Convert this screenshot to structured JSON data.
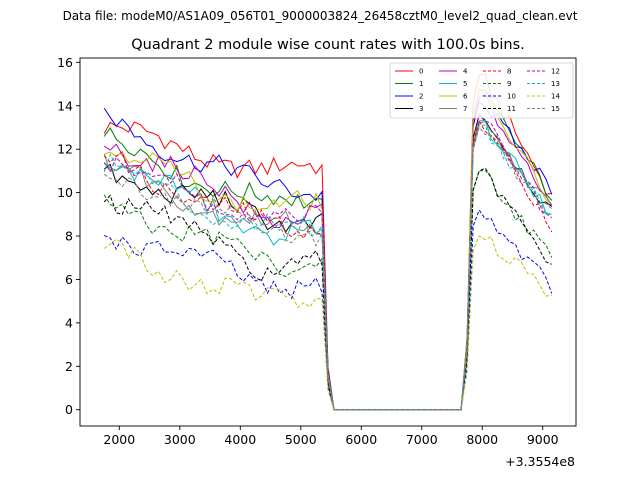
{
  "chart_data": {
    "type": "line",
    "suptitle": "Data file: modeM0/AS1A09_056T01_9000003824_26458cztM0_level2_quad_clean.evt",
    "title": "Quadrant 2 module wise count rates with 100.0s bins.",
    "xlabel": "",
    "ylabel": "",
    "x_offset_label": "+3.3554e8",
    "xlim": [
      1350,
      9550
    ],
    "ylim": [
      -0.75,
      16.2
    ],
    "xticks": [
      2000,
      3000,
      4000,
      5000,
      6000,
      7000,
      8000,
      9000
    ],
    "xtick_labels": [
      "2000",
      "3000",
      "4000",
      "5000",
      "6000",
      "7000",
      "8000",
      "9000"
    ],
    "yticks": [
      0,
      2,
      4,
      6,
      8,
      10,
      12,
      14,
      16
    ],
    "ytick_labels": [
      "0",
      "2",
      "4",
      "6",
      "8",
      "10",
      "12",
      "14",
      "16"
    ],
    "legend_position": "top-right",
    "x": {
      "start": 1750,
      "end": 9150,
      "step": 100,
      "gap_start": 5550,
      "gap_end": 7750
    },
    "series": [
      {
        "name": "0",
        "color": "#ff0000",
        "dash": "solid",
        "base1": 13.0,
        "base2": 11.0,
        "peak": 15.4,
        "end": 9.8
      },
      {
        "name": "1",
        "color": "#008000",
        "dash": "solid",
        "base1": 12.4,
        "base2": 9.5,
        "peak": 14.7,
        "end": 9.8
      },
      {
        "name": "2",
        "color": "#0000ff",
        "dash": "solid",
        "base1": 13.4,
        "base2": 10.2,
        "peak": 14.2,
        "end": 10.2
      },
      {
        "name": "3",
        "color": "#000000",
        "dash": "solid",
        "base1": 11.0,
        "base2": 8.8,
        "peak": 13.6,
        "end": 9.0
      },
      {
        "name": "4",
        "color": "#bf00bf",
        "dash": "solid",
        "base1": 12.5,
        "base2": 9.0,
        "peak": 14.4,
        "end": 9.6
      },
      {
        "name": "5",
        "color": "#00bfbf",
        "dash": "solid",
        "base1": 11.5,
        "base2": 8.2,
        "peak": 13.3,
        "end": 9.0
      },
      {
        "name": "6",
        "color": "#bfbf00",
        "dash": "solid",
        "base1": 12.0,
        "base2": 9.3,
        "peak": 14.8,
        "end": 9.4
      },
      {
        "name": "7",
        "color": "#808080",
        "dash": "solid",
        "base1": 11.2,
        "base2": 8.4,
        "peak": 13.2,
        "end": 9.2
      },
      {
        "name": "8",
        "color": "#ff0000",
        "dash": "dashed",
        "base1": 11.6,
        "base2": 8.4,
        "peak": 13.3,
        "end": 8.5
      },
      {
        "name": "9",
        "color": "#008000",
        "dash": "dashed",
        "base1": 9.6,
        "base2": 6.8,
        "peak": 11.0,
        "end": 7.0
      },
      {
        "name": "10",
        "color": "#0000ff",
        "dash": "dashed",
        "base1": 8.3,
        "base2": 5.8,
        "peak": 9.2,
        "end": 5.7
      },
      {
        "name": "11",
        "color": "#000000",
        "dash": "dashed",
        "base1": 10.0,
        "base2": 6.6,
        "peak": 11.0,
        "end": 6.6
      },
      {
        "name": "12",
        "color": "#bf00bf",
        "dash": "dashed",
        "base1": 11.4,
        "base2": 8.7,
        "peak": 13.5,
        "end": 8.6
      },
      {
        "name": "13",
        "color": "#00bfbf",
        "dash": "dashed",
        "base1": 11.2,
        "base2": 8.3,
        "peak": 13.1,
        "end": 8.8
      },
      {
        "name": "14",
        "color": "#bfbf00",
        "dash": "dashed",
        "base1": 7.4,
        "base2": 5.0,
        "peak": 8.0,
        "end": 5.3
      },
      {
        "name": "15",
        "color": "#808080",
        "dash": "dashed",
        "base1": 11.0,
        "base2": 8.3,
        "peak": 13.0,
        "end": 9.0
      }
    ]
  }
}
